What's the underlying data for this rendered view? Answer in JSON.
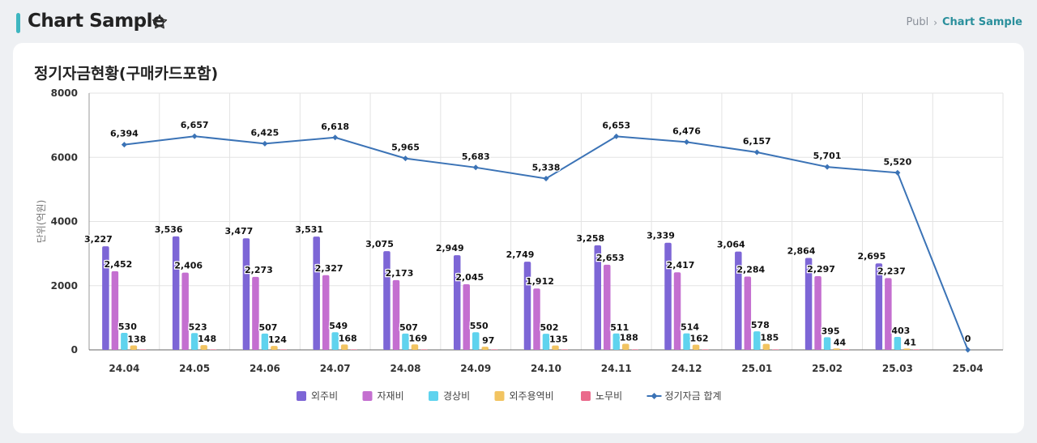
{
  "header": {
    "title": "Chart Sample",
    "breadcrumb": [
      "Publ",
      "Chart Sample"
    ]
  },
  "card": {
    "title": "정기자금현황(구매카드포함)"
  },
  "colors": {
    "accent": "#3eb6c0",
    "series": [
      "#7d66d6",
      "#c46fd0",
      "#5fd3ee",
      "#f2c461",
      "#ea6a8c"
    ],
    "line": "#3b73b6"
  },
  "chart_data": {
    "type": "bar",
    "categories": [
      "24.04",
      "24.05",
      "24.06",
      "24.07",
      "24.08",
      "24.09",
      "24.10",
      "24.11",
      "24.12",
      "25.01",
      "25.02",
      "25.03",
      "25.04"
    ],
    "ylabel": "단위(억원)",
    "ylim": [
      0,
      8000
    ],
    "yticks": [
      0,
      2000,
      4000,
      6000,
      8000
    ],
    "grid": true,
    "legend_position": "bottom",
    "series": [
      {
        "name": "외주비",
        "type": "bar",
        "values": [
          3227,
          3536,
          3477,
          3531,
          3075,
          2949,
          2749,
          3258,
          3339,
          3064,
          2864,
          2695,
          0
        ],
        "labels": [
          "3,227",
          "3,536",
          "3,477",
          "3,531",
          "3,075",
          "2,949",
          "2,749",
          "3,258",
          "3,339",
          "3,064",
          "2,864",
          "2,695",
          ""
        ]
      },
      {
        "name": "자재비",
        "type": "bar",
        "values": [
          2452,
          2406,
          2273,
          2327,
          2173,
          2045,
          1912,
          2653,
          2417,
          2284,
          2297,
          2237,
          0
        ],
        "labels": [
          "2,452",
          "2,406",
          "2,273",
          "2,327",
          "2,173",
          "2,045",
          "1,912",
          "2,653",
          "2,417",
          "2,284",
          "2,297",
          "2,237",
          ""
        ]
      },
      {
        "name": "경상비",
        "type": "bar",
        "values": [
          530,
          523,
          507,
          549,
          507,
          550,
          502,
          511,
          514,
          578,
          395,
          403,
          0
        ],
        "labels": [
          "530",
          "523",
          "507",
          "549",
          "507",
          "550",
          "502",
          "511",
          "514",
          "578",
          "395",
          "403",
          ""
        ]
      },
      {
        "name": "외주용역비",
        "type": "bar",
        "values": [
          138,
          148,
          124,
          168,
          169,
          97,
          135,
          188,
          162,
          185,
          44,
          41,
          0
        ],
        "labels": [
          "138",
          "148",
          "124",
          "168",
          "169",
          "97",
          "135",
          "188",
          "162",
          "185",
          "44",
          "41",
          ""
        ]
      },
      {
        "name": "노무비",
        "type": "bar",
        "values": [
          15,
          15,
          15,
          15,
          15,
          15,
          15,
          15,
          15,
          15,
          15,
          15,
          0
        ],
        "labels": [
          "",
          "",
          "",
          "",
          "",
          "",
          "",
          "",
          "",
          "",
          "",
          "",
          ""
        ]
      },
      {
        "name": "정기자금 합계",
        "type": "line",
        "values": [
          6394,
          6657,
          6425,
          6618,
          5965,
          5683,
          5338,
          6653,
          6476,
          6157,
          5701,
          5520,
          0
        ],
        "labels": [
          "6,394",
          "6,657",
          "6,425",
          "6,618",
          "5,965",
          "5,683",
          "5,338",
          "6,653",
          "6,476",
          "6,157",
          "5,701",
          "5,520",
          "0"
        ]
      }
    ]
  }
}
